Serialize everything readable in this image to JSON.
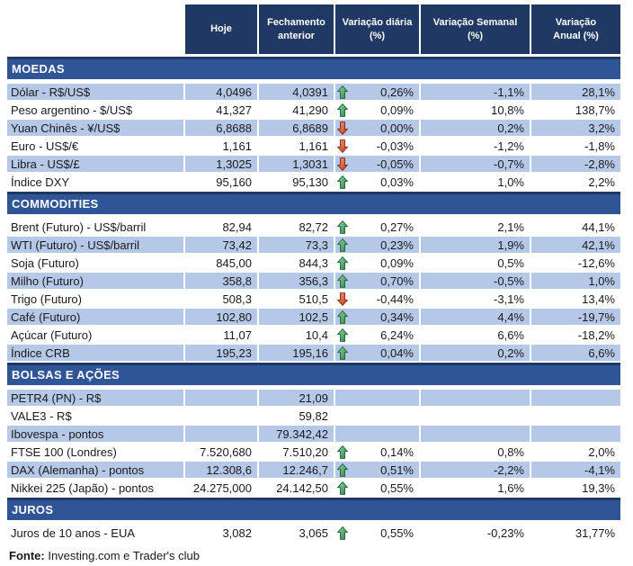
{
  "header": {
    "columns": [
      "Hoje",
      "Fechamento\nanterior",
      "Variação diária\n(%)",
      "Variação Semanal\n(%)",
      "Variação\nAnual (%)"
    ]
  },
  "chart_data": {
    "type": "table",
    "columns": [
      "Hoje",
      "Fechamento anterior",
      "Variação diária (%)",
      "Variação Semanal (%)",
      "Variação Anual (%)"
    ],
    "sections": [
      {
        "id": "moedas",
        "title": "MOEDAS",
        "rows": [
          {
            "label": "Dólar - R$/US$",
            "hoje": "4,0496",
            "fechamento": "4,0391",
            "arrow": "up",
            "diaria": "0,26%",
            "semanal": "-1,1%",
            "anual": "28,1%",
            "shaded": true
          },
          {
            "label": "Peso argentino - $/US$",
            "hoje": "41,327",
            "fechamento": "41,290",
            "arrow": "up",
            "diaria": "0,09%",
            "semanal": "10,8%",
            "anual": "138,7%",
            "shaded": false
          },
          {
            "label": "Yuan Chinês - ¥/US$",
            "hoje": "6,8688",
            "fechamento": "6,8689",
            "arrow": "down",
            "diaria": "0,00%",
            "semanal": "0,2%",
            "anual": "3,2%",
            "shaded": true
          },
          {
            "label": "Euro - US$/€",
            "hoje": "1,161",
            "fechamento": "1,161",
            "arrow": "down",
            "diaria": "-0,03%",
            "semanal": "-1,2%",
            "anual": "-1,8%",
            "shaded": false
          },
          {
            "label": "Libra - US$/£",
            "hoje": "1,3025",
            "fechamento": "1,3031",
            "arrow": "down",
            "diaria": "-0,05%",
            "semanal": "-0,7%",
            "anual": "-2,8%",
            "shaded": true
          },
          {
            "label": "Índice DXY",
            "hoje": "95,160",
            "fechamento": "95,130",
            "arrow": "up",
            "diaria": "0,03%",
            "semanal": "1,0%",
            "anual": "2,2%",
            "shaded": false
          }
        ]
      },
      {
        "id": "commodities",
        "title": "COMMODITIES",
        "rows": [
          {
            "label": "Brent (Futuro) - US$/barril",
            "hoje": "82,94",
            "fechamento": "82,72",
            "arrow": "up",
            "diaria": "0,27%",
            "semanal": "2,1%",
            "anual": "44,1%",
            "shaded": false
          },
          {
            "label": "WTI (Futuro) - US$/barril",
            "hoje": "73,42",
            "fechamento": "73,3",
            "arrow": "up",
            "diaria": "0,23%",
            "semanal": "1,9%",
            "anual": "42,1%",
            "shaded": true
          },
          {
            "label": "Soja (Futuro)",
            "hoje": "845,00",
            "fechamento": "844,3",
            "arrow": "up",
            "diaria": "0,09%",
            "semanal": "0,5%",
            "anual": "-12,6%",
            "shaded": false
          },
          {
            "label": "Milho (Futuro)",
            "hoje": "358,8",
            "fechamento": "356,3",
            "arrow": "up",
            "diaria": "0,70%",
            "semanal": "-0,5%",
            "anual": "1,0%",
            "shaded": true
          },
          {
            "label": "Trigo (Futuro)",
            "hoje": "508,3",
            "fechamento": "510,5",
            "arrow": "down",
            "diaria": "-0,44%",
            "semanal": "-3,1%",
            "anual": "13,4%",
            "shaded": false
          },
          {
            "label": "Café (Futuro)",
            "hoje": "102,80",
            "fechamento": "102,5",
            "arrow": "up",
            "diaria": "0,34%",
            "semanal": "4,4%",
            "anual": "-19,7%",
            "shaded": true
          },
          {
            "label": "Açúcar (Futuro)",
            "hoje": "11,07",
            "fechamento": "10,4",
            "arrow": "up",
            "diaria": "6,24%",
            "semanal": "6,6%",
            "anual": "-18,2%",
            "shaded": false
          },
          {
            "label": "Índice CRB",
            "hoje": "195,23",
            "fechamento": "195,16",
            "arrow": "up",
            "diaria": "0,04%",
            "semanal": "0,2%",
            "anual": "6,6%",
            "shaded": true
          }
        ]
      },
      {
        "id": "bolsas-e-acoes",
        "title": "BOLSAS E AÇÕES",
        "rows": [
          {
            "label": "PETR4 (PN) - R$",
            "hoje": "",
            "fechamento": "21,09",
            "arrow": "",
            "diaria": "",
            "semanal": "",
            "anual": "",
            "shaded": true
          },
          {
            "label": "VALE3 - R$",
            "hoje": "",
            "fechamento": "59,82",
            "arrow": "",
            "diaria": "",
            "semanal": "",
            "anual": "",
            "shaded": false
          },
          {
            "label": "Ibovespa - pontos",
            "hoje": "",
            "fechamento": "79.342,42",
            "arrow": "",
            "diaria": "",
            "semanal": "",
            "anual": "",
            "shaded": true
          },
          {
            "label": "FTSE 100 (Londres)",
            "hoje": "7.520,680",
            "fechamento": "7.510,20",
            "arrow": "up",
            "diaria": "0,14%",
            "semanal": "0,8%",
            "anual": "2,0%",
            "shaded": false
          },
          {
            "label": "DAX (Alemanha) - pontos",
            "hoje": "12.308,6",
            "fechamento": "12.246,7",
            "arrow": "up",
            "diaria": "0,51%",
            "semanal": "-2,2%",
            "anual": "-4,1%",
            "shaded": true
          },
          {
            "label": "Nikkei 225 (Japão) - pontos",
            "hoje": "24.275,000",
            "fechamento": "24.142,50",
            "arrow": "up",
            "diaria": "0,55%",
            "semanal": "1,6%",
            "anual": "19,3%",
            "shaded": false
          }
        ]
      },
      {
        "id": "juros",
        "title": "JUROS",
        "rows": [
          {
            "label": "Juros de 10 anos - EUA",
            "hoje": "3,082",
            "fechamento": "3,065",
            "arrow": "up",
            "diaria": "0,55%",
            "semanal": "-0,23%",
            "anual": "31,77%",
            "shaded": false
          }
        ]
      }
    ]
  },
  "footer": {
    "fonte_label": "Fonte:",
    "fonte_text": " Investing.com e Trader's club"
  },
  "colors": {
    "header_bg": "#1F3864",
    "section_bg": "#2F5597",
    "row_shaded_bg": "#B6C8E8",
    "arrow_up": "#2E8049",
    "arrow_down": "#BD3A1C"
  }
}
